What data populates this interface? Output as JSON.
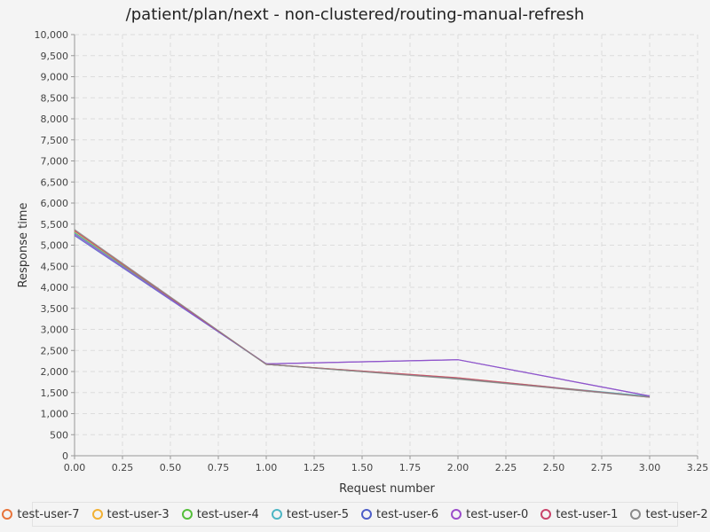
{
  "chart_data": {
    "type": "line",
    "title": "/patient/plan/next - non-clustered/routing-manual-refresh",
    "xlabel": "Request number",
    "ylabel": "Response time",
    "xlim": [
      0,
      3.25
    ],
    "ylim": [
      0,
      10000
    ],
    "x_ticks": [
      "0.00",
      "0.25",
      "0.50",
      "0.75",
      "1.00",
      "1.25",
      "1.50",
      "1.75",
      "2.00",
      "2.25",
      "2.50",
      "2.75",
      "3.00",
      "3.25"
    ],
    "y_ticks": [
      "0",
      "500",
      "1,000",
      "1,500",
      "2,000",
      "2,500",
      "3,000",
      "3,500",
      "4,000",
      "4,500",
      "5,000",
      "5,500",
      "6,000",
      "6,500",
      "7,000",
      "7,500",
      "8,000",
      "8,500",
      "9,000",
      "9,500",
      "10,000"
    ],
    "grid": true,
    "legend_position": "bottom",
    "x": [
      0,
      1,
      2,
      3
    ],
    "series": [
      {
        "name": "test-user-7",
        "color": "#e8743b",
        "values": [
          5350,
          2170,
          1840,
          1400
        ]
      },
      {
        "name": "test-user-3",
        "color": "#f2b134",
        "values": [
          5340,
          2170,
          1850,
          1400
        ]
      },
      {
        "name": "test-user-4",
        "color": "#55bf3b",
        "values": [
          5300,
          2170,
          1830,
          1400
        ]
      },
      {
        "name": "test-user-5",
        "color": "#4db6c4",
        "values": [
          5280,
          2170,
          1840,
          1410
        ]
      },
      {
        "name": "test-user-6",
        "color": "#4d5ec8",
        "values": [
          5230,
          2180,
          2280,
          1420
        ]
      },
      {
        "name": "test-user-0",
        "color": "#9b4dca",
        "values": [
          5260,
          2180,
          2280,
          1420
        ]
      },
      {
        "name": "test-user-1",
        "color": "#c9446b",
        "values": [
          5340,
          2170,
          1850,
          1390
        ]
      },
      {
        "name": "test-user-2",
        "color": "#8a8a8a",
        "values": [
          5370,
          2170,
          1820,
          1390
        ]
      }
    ]
  }
}
